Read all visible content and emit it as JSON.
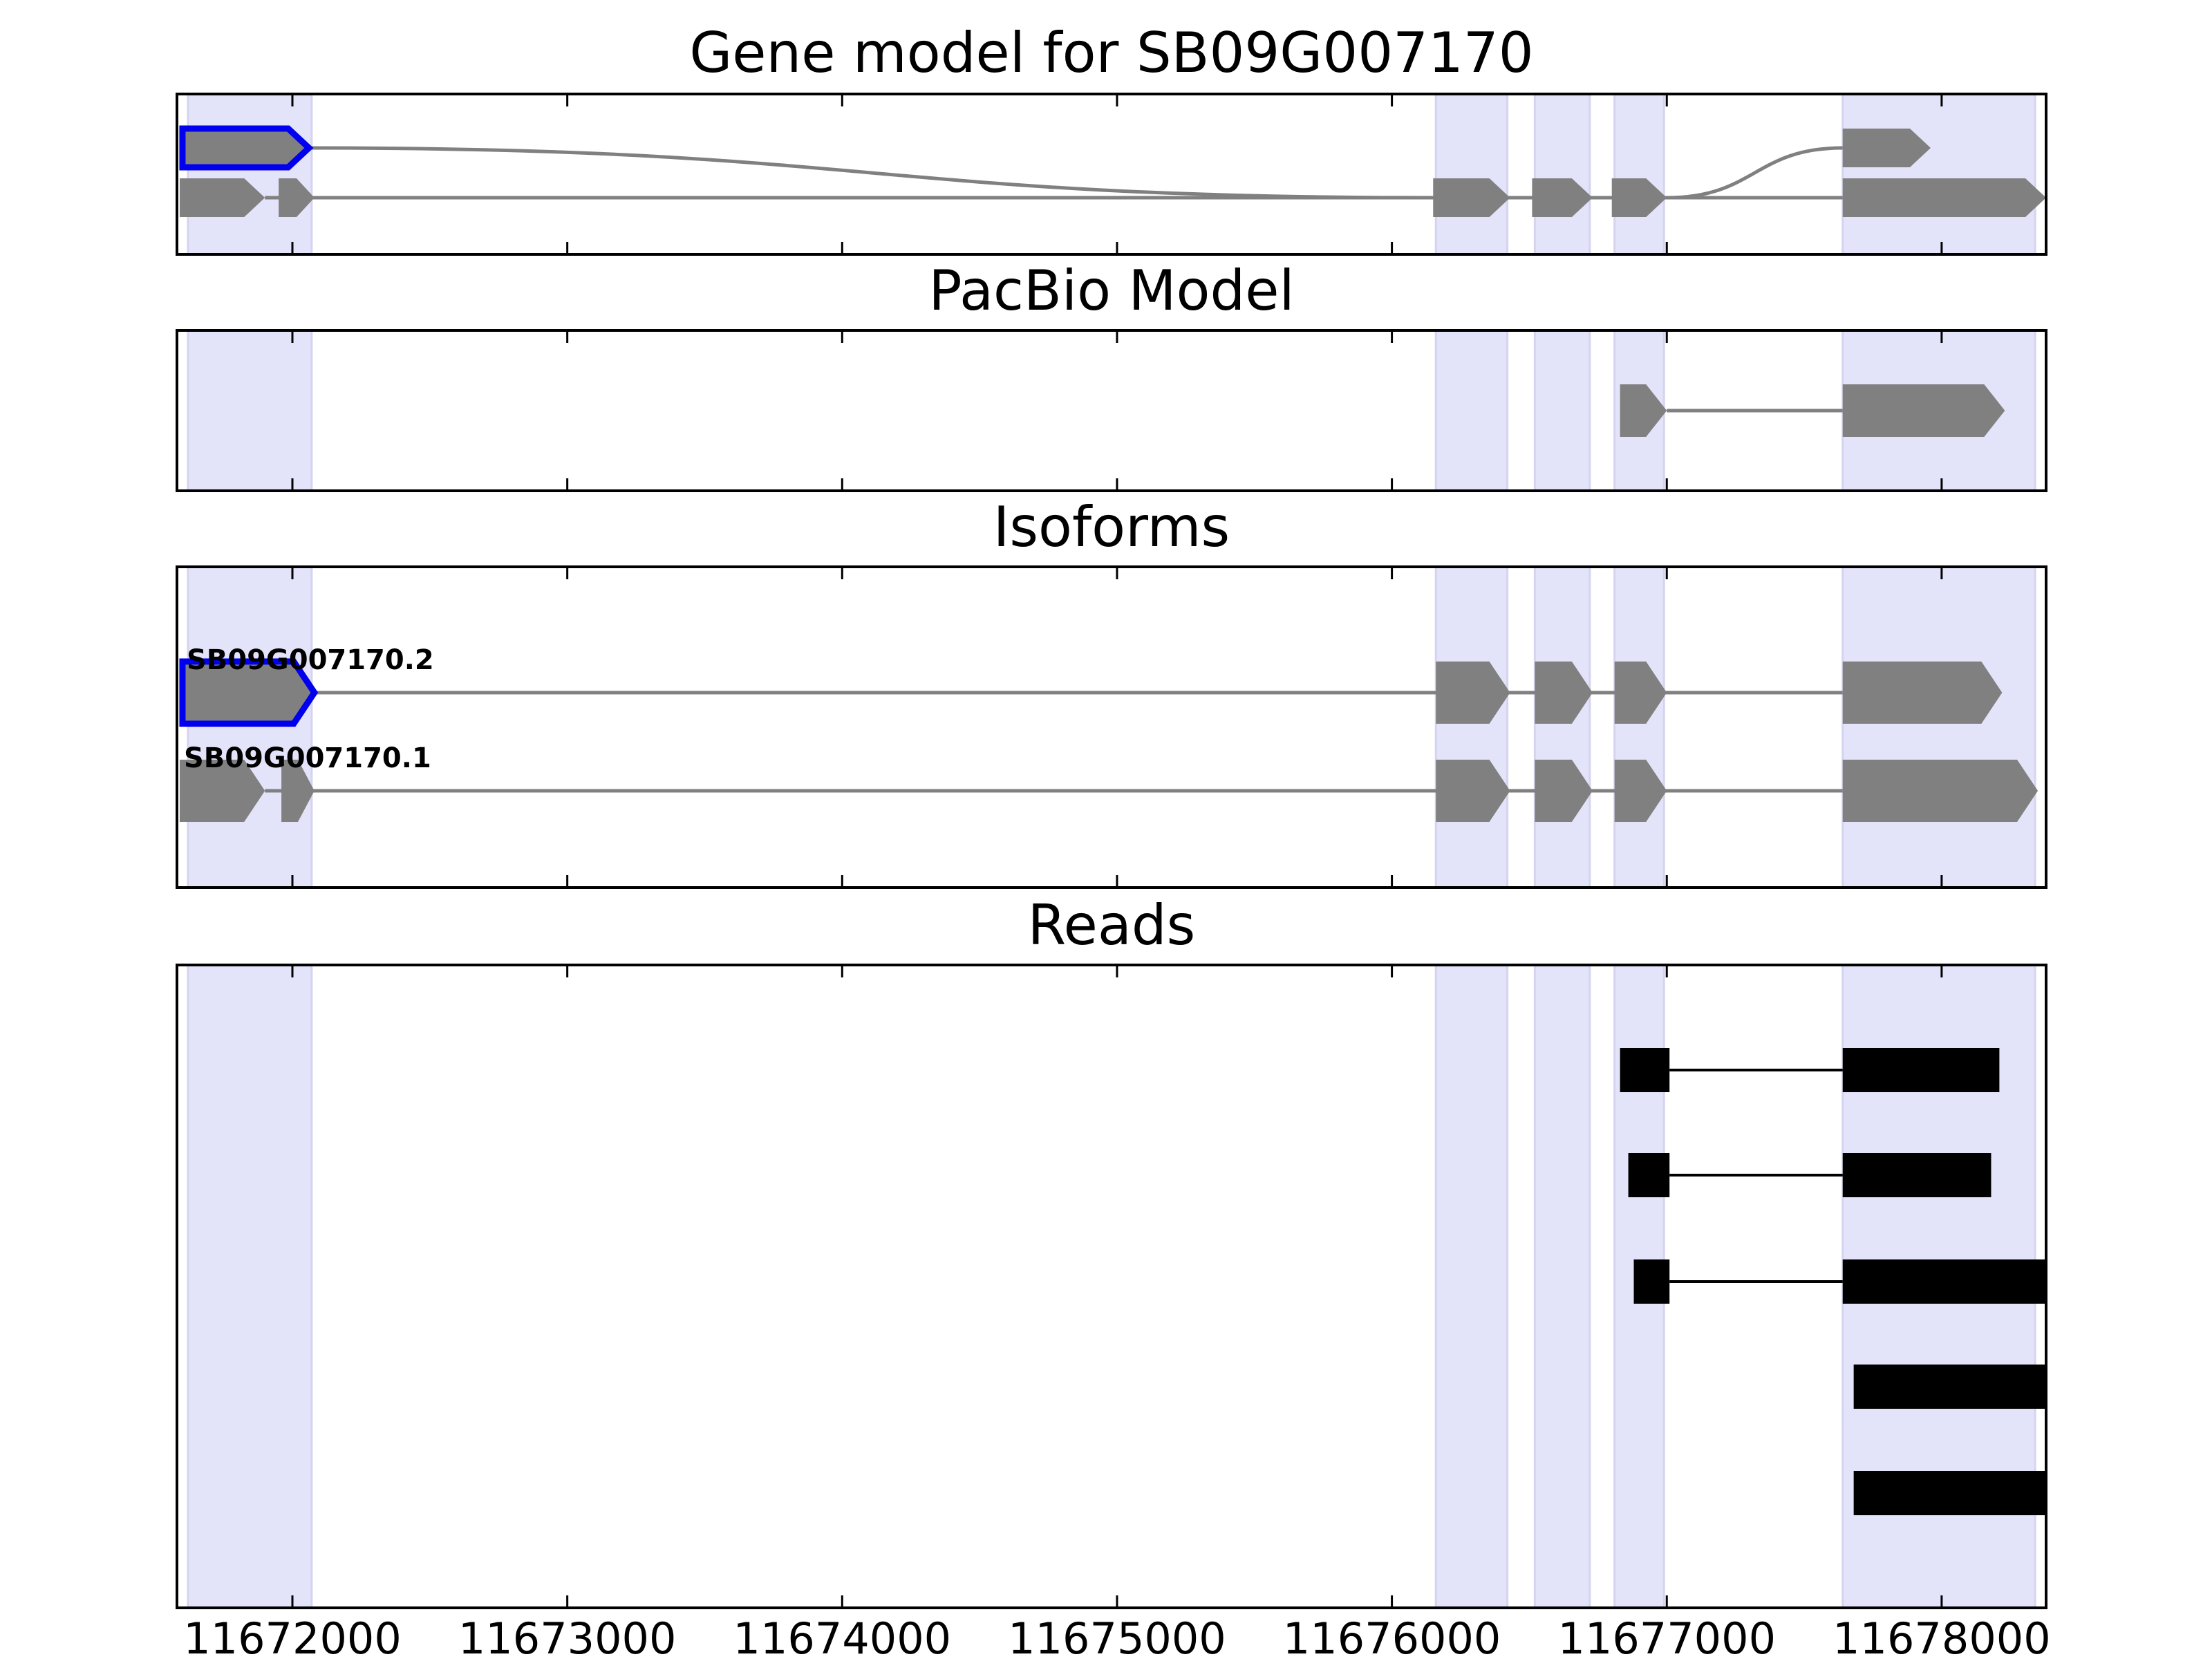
{
  "chart_data": {
    "type": "gene-structure",
    "x_range": [
      11671580,
      11678380
    ],
    "x_ticks": [
      11672000,
      11673000,
      11674000,
      11675000,
      11676000,
      11677000,
      11678000
    ],
    "x_tick_labels": [
      "11672000",
      "11673000",
      "11674000",
      "11675000",
      "11676000",
      "11677000",
      "11678000"
    ],
    "shaded_exons": [
      [
        11671620,
        11672070
      ],
      [
        11676160,
        11676420
      ],
      [
        11676520,
        11676720
      ],
      [
        11676810,
        11676990
      ],
      [
        11677640,
        11678340
      ]
    ],
    "colors": {
      "exon": "#808080",
      "intron_line": "#808080",
      "highlight_outline": "#0000ee",
      "read": "#000000",
      "shade": "#e3e3fa"
    },
    "panels": [
      {
        "title": "Gene model for SB09G007170",
        "kind": "graph",
        "tracks": [
          {
            "name": "upper",
            "exons": [
              [
                11671600,
                11672060
              ],
              [
                11677640,
                11677960
              ]
            ],
            "highlight_first": true
          },
          {
            "name": "lower",
            "exons": [
              [
                11671590,
                11671900
              ],
              [
                11671950,
                11672080
              ],
              [
                11676150,
                11676430
              ],
              [
                11676510,
                11676730
              ],
              [
                11676800,
                11677000
              ],
              [
                11677640,
                11678380
              ]
            ]
          }
        ],
        "edges": [
          {
            "from": [
              11672060,
              "upper"
            ],
            "to": [
              11676150,
              "lower"
            ]
          },
          {
            "from": [
              11677000,
              "lower"
            ],
            "to": [
              11677640,
              "upper"
            ]
          }
        ]
      },
      {
        "title": "PacBio Model",
        "kind": "model",
        "tracks": [
          {
            "name": "pacbio",
            "exons": [
              [
                11676830,
                11677000
              ],
              [
                11677640,
                11678230
              ]
            ]
          }
        ]
      },
      {
        "title": "Isoforms",
        "kind": "isoforms",
        "tracks": [
          {
            "name": "SB09G007170.2",
            "label": "SB09G007170.2",
            "exons": [
              [
                11671600,
                11672080
              ],
              [
                11676160,
                11676430
              ],
              [
                11676520,
                11676730
              ],
              [
                11676810,
                11677000
              ],
              [
                11677640,
                11678220
              ]
            ],
            "highlight_first": true
          },
          {
            "name": "SB09G007170.1",
            "label": "SB09G007170.1",
            "exons": [
              [
                11671590,
                11671900
              ],
              [
                11671960,
                11672080
              ],
              [
                11676160,
                11676430
              ],
              [
                11676520,
                11676730
              ],
              [
                11676810,
                11677000
              ],
              [
                11677640,
                11678350
              ]
            ]
          }
        ]
      },
      {
        "title": "Reads",
        "kind": "reads",
        "tracks": [
          {
            "name": "read-1",
            "blocks": [
              [
                11676830,
                11677010
              ],
              [
                11677640,
                11678210
              ]
            ]
          },
          {
            "name": "read-2",
            "blocks": [
              [
                11676860,
                11677010
              ],
              [
                11677640,
                11678180
              ]
            ]
          },
          {
            "name": "read-3",
            "blocks": [
              [
                11676880,
                11677010
              ],
              [
                11677640,
                11678380
              ]
            ]
          },
          {
            "name": "read-4",
            "blocks": [
              [
                11677680,
                11678380
              ]
            ]
          },
          {
            "name": "read-5",
            "blocks": [
              [
                11677680,
                11678380
              ]
            ]
          }
        ]
      }
    ]
  }
}
